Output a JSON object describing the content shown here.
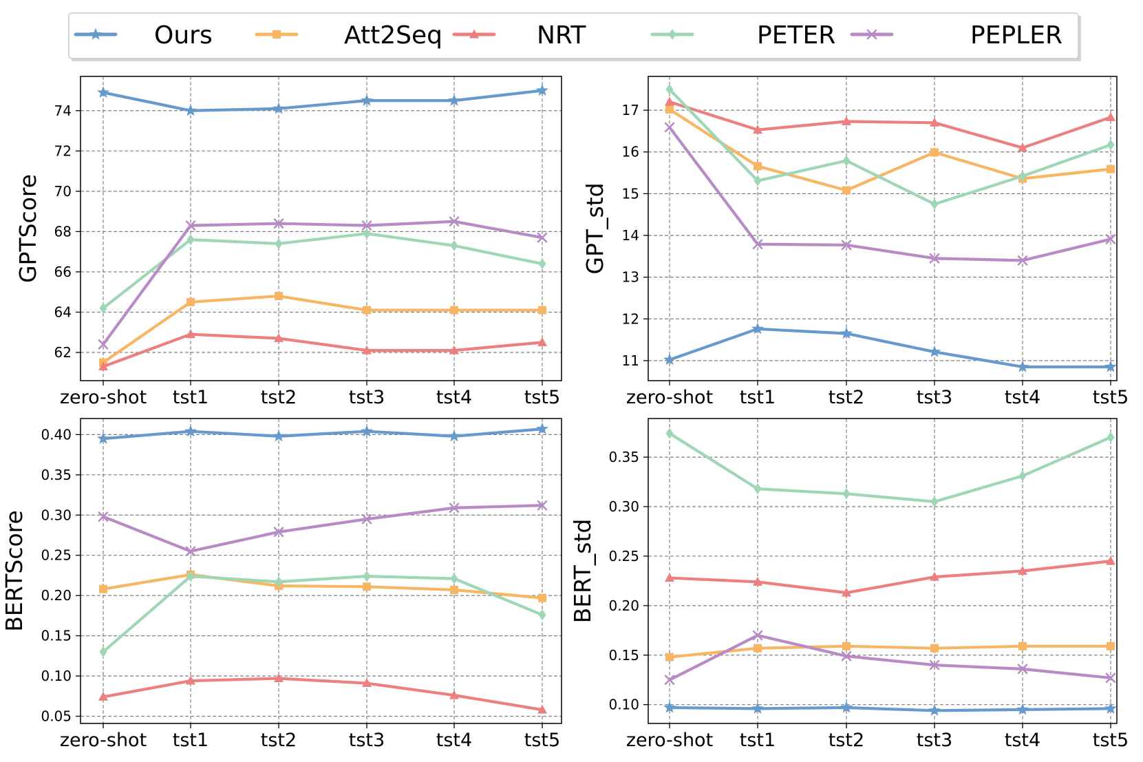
{
  "legend": [
    {
      "name": "Ours",
      "color": "#6699cc",
      "marker": "star"
    },
    {
      "name": "Att2Seq",
      "color": "#f8b563",
      "marker": "square"
    },
    {
      "name": "NRT",
      "color": "#ec7f7f",
      "marker": "triangle"
    },
    {
      "name": "PETER",
      "color": "#9fd6b5",
      "marker": "diamond"
    },
    {
      "name": "PEPLER",
      "color": "#b98bc6",
      "marker": "x"
    }
  ],
  "chart_data": [
    {
      "type": "line",
      "position": "top-left",
      "title": "",
      "xlabel": "",
      "ylabel": "GPTScore",
      "categories": [
        "zero-shot",
        "tst1",
        "tst2",
        "tst3",
        "tst4",
        "tst5"
      ],
      "ylim": [
        60.6,
        75.7
      ],
      "yticks": [
        62,
        64,
        66,
        68,
        70,
        72,
        74
      ],
      "ytick_labels": [
        "62",
        "64",
        "66",
        "68",
        "70",
        "72",
        "74"
      ],
      "grid": true,
      "series": [
        {
          "name": "Ours",
          "values": [
            74.9,
            74.0,
            74.1,
            74.5,
            74.5,
            75.0
          ]
        },
        {
          "name": "Att2Seq",
          "values": [
            61.5,
            64.5,
            64.8,
            64.1,
            64.1,
            64.1
          ]
        },
        {
          "name": "NRT",
          "values": [
            61.3,
            62.9,
            62.7,
            62.1,
            62.1,
            62.5
          ]
        },
        {
          "name": "PETER",
          "values": [
            64.2,
            67.6,
            67.4,
            67.9,
            67.3,
            66.4
          ]
        },
        {
          "name": "PEPLER",
          "values": [
            62.4,
            68.3,
            68.4,
            68.3,
            68.5,
            67.7
          ]
        }
      ]
    },
    {
      "type": "line",
      "position": "top-right",
      "title": "",
      "xlabel": "",
      "ylabel": "GPT_std",
      "categories": [
        "zero-shot",
        "tst1",
        "tst2",
        "tst3",
        "tst4",
        "tst5"
      ],
      "ylim": [
        10.52,
        17.81
      ],
      "yticks": [
        11,
        12,
        13,
        14,
        15,
        16,
        17
      ],
      "ytick_labels": [
        "11",
        "12",
        "13",
        "14",
        "15",
        "16",
        "17"
      ],
      "grid": true,
      "series": [
        {
          "name": "Ours",
          "values": [
            11.02,
            11.76,
            11.65,
            11.21,
            10.85,
            10.85
          ]
        },
        {
          "name": "Att2Seq",
          "values": [
            17.02,
            15.66,
            15.08,
            15.99,
            15.36,
            15.59
          ]
        },
        {
          "name": "NRT",
          "values": [
            17.2,
            16.53,
            16.73,
            16.7,
            16.1,
            16.83
          ]
        },
        {
          "name": "PETER",
          "values": [
            17.5,
            15.31,
            15.79,
            14.75,
            15.42,
            16.17
          ]
        },
        {
          "name": "PEPLER",
          "values": [
            16.59,
            13.79,
            13.77,
            13.45,
            13.4,
            13.91
          ]
        }
      ]
    },
    {
      "type": "line",
      "position": "bottom-left",
      "title": "",
      "xlabel": "",
      "ylabel": "BERTScore",
      "categories": [
        "zero-shot",
        "tst1",
        "tst2",
        "tst3",
        "tst4",
        "tst5"
      ],
      "ylim": [
        0.041,
        0.42
      ],
      "yticks": [
        0.05,
        0.1,
        0.15,
        0.2,
        0.25,
        0.3,
        0.35,
        0.4
      ],
      "ytick_labels": [
        "0.05",
        "0.10",
        "0.15",
        "0.20",
        "0.25",
        "0.30",
        "0.35",
        "0.40"
      ],
      "grid": true,
      "series": [
        {
          "name": "Ours",
          "values": [
            0.395,
            0.404,
            0.398,
            0.404,
            0.398,
            0.407
          ]
        },
        {
          "name": "Att2Seq",
          "values": [
            0.208,
            0.226,
            0.212,
            0.211,
            0.207,
            0.197
          ]
        },
        {
          "name": "NRT",
          "values": [
            0.074,
            0.094,
            0.097,
            0.091,
            0.076,
            0.058
          ]
        },
        {
          "name": "PETER",
          "values": [
            0.13,
            0.224,
            0.217,
            0.224,
            0.221,
            0.176
          ]
        },
        {
          "name": "PEPLER",
          "values": [
            0.298,
            0.255,
            0.279,
            0.295,
            0.309,
            0.312
          ]
        }
      ]
    },
    {
      "type": "line",
      "position": "bottom-right",
      "title": "",
      "xlabel": "",
      "ylabel": "BERT_std",
      "categories": [
        "zero-shot",
        "tst1",
        "tst2",
        "tst3",
        "tst4",
        "tst5"
      ],
      "ylim": [
        0.081,
        0.389
      ],
      "yticks": [
        0.1,
        0.15,
        0.2,
        0.25,
        0.3,
        0.35
      ],
      "ytick_labels": [
        "0.10",
        "0.15",
        "0.20",
        "0.25",
        "0.30",
        "0.35"
      ],
      "grid": true,
      "series": [
        {
          "name": "Ours",
          "values": [
            0.097,
            0.096,
            0.097,
            0.094,
            0.095,
            0.096
          ]
        },
        {
          "name": "Att2Seq",
          "values": [
            0.148,
            0.157,
            0.159,
            0.157,
            0.159,
            0.159
          ]
        },
        {
          "name": "NRT",
          "values": [
            0.228,
            0.224,
            0.213,
            0.229,
            0.235,
            0.245
          ]
        },
        {
          "name": "PETER",
          "values": [
            0.374,
            0.318,
            0.313,
            0.305,
            0.331,
            0.37
          ]
        },
        {
          "name": "PEPLER",
          "values": [
            0.125,
            0.17,
            0.149,
            0.14,
            0.136,
            0.127
          ]
        }
      ]
    }
  ]
}
